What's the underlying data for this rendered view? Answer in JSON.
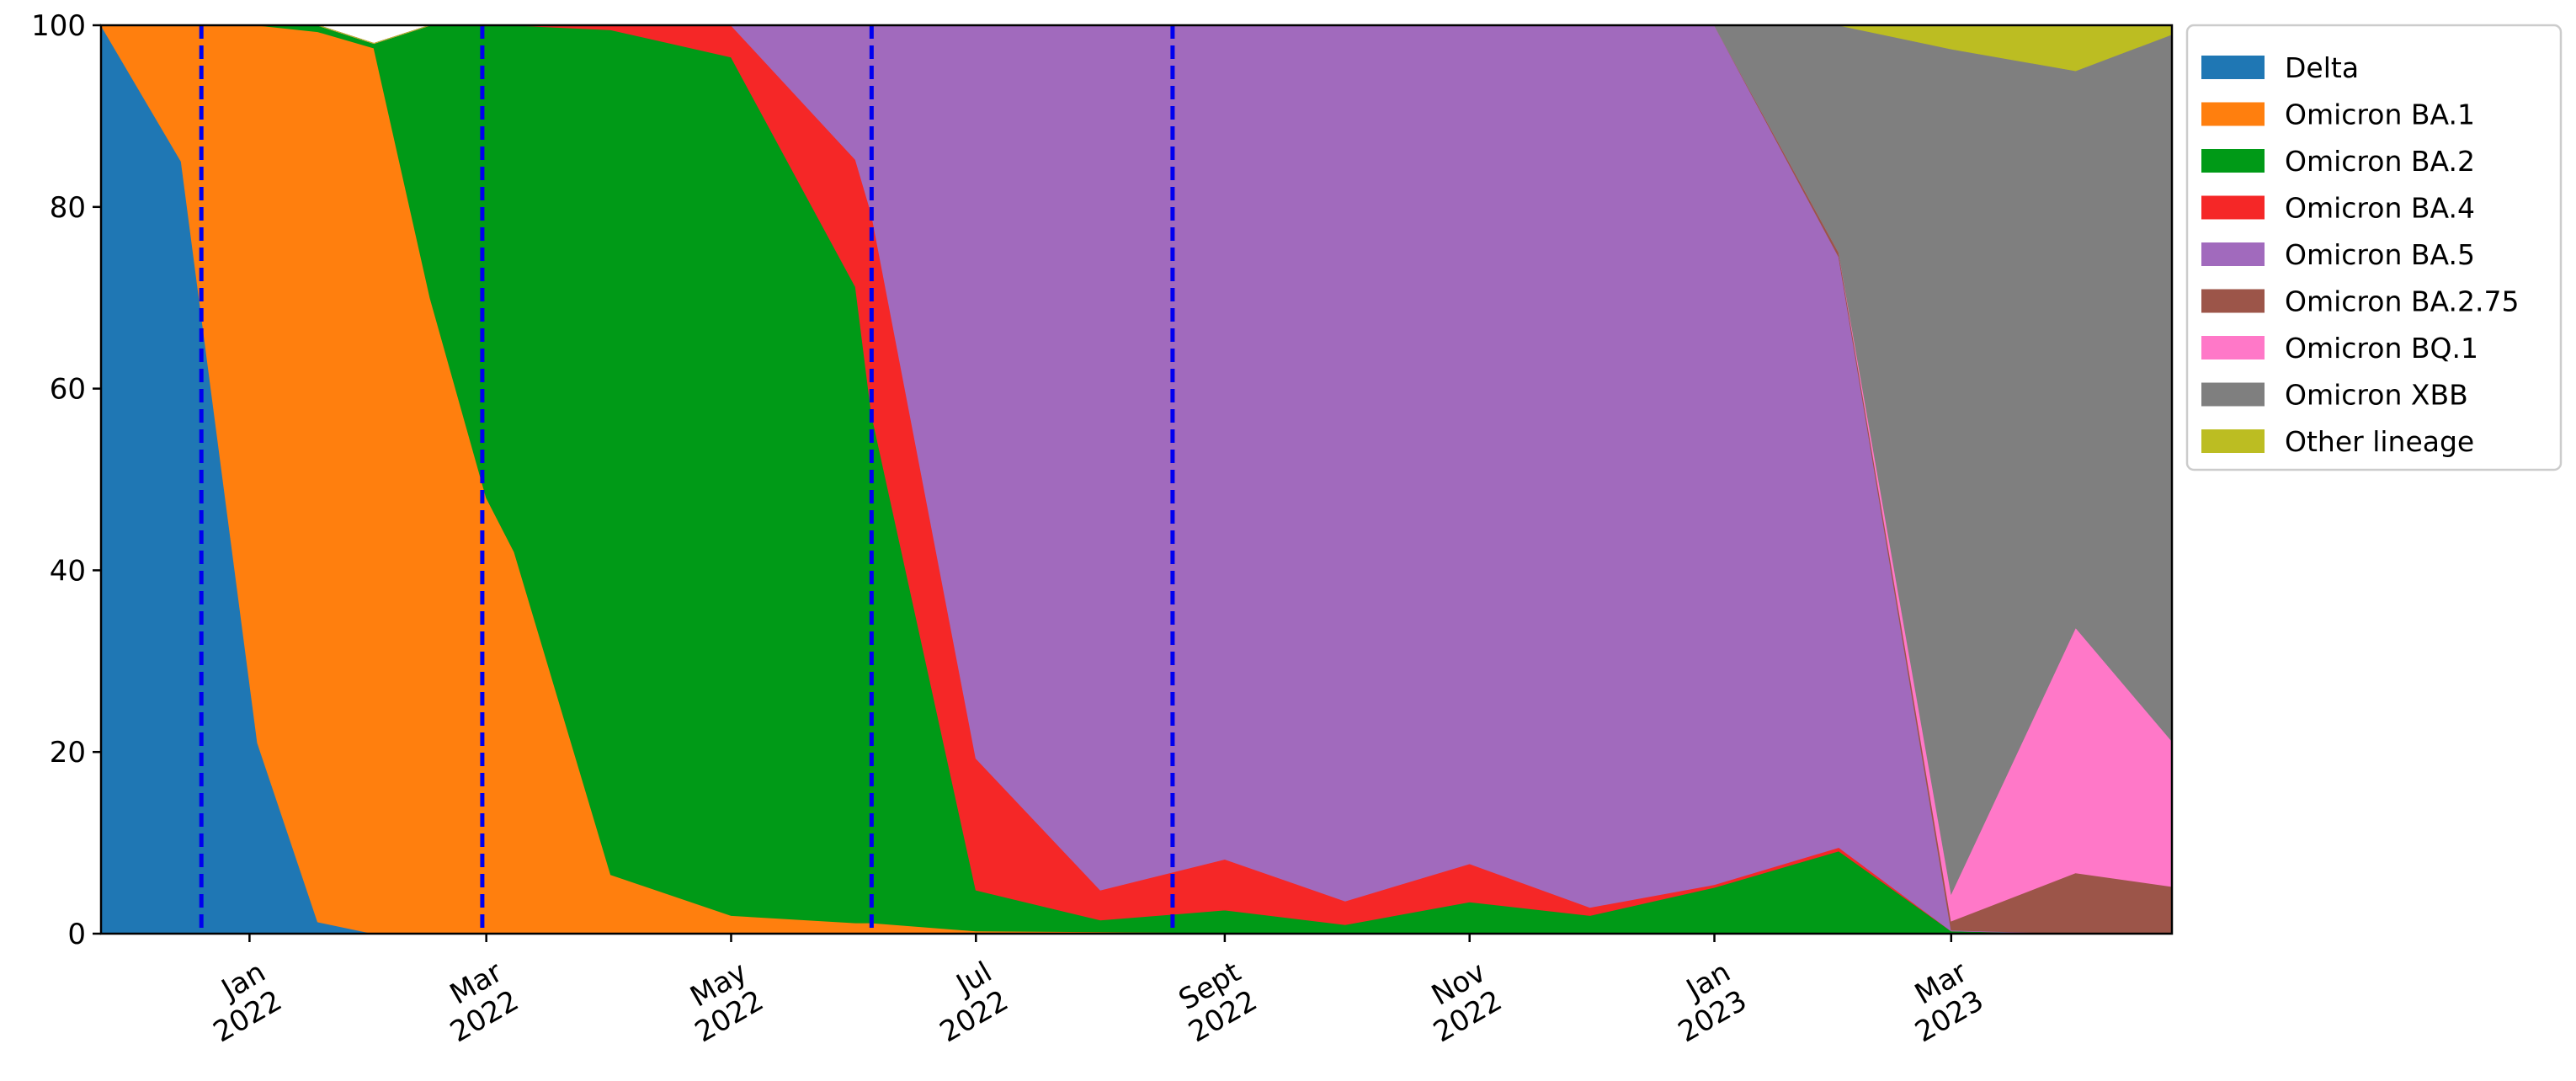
{
  "chart_data": {
    "type": "area",
    "stacked": true,
    "title": "",
    "xlabel": "",
    "ylabel": "",
    "ylim": [
      0,
      100
    ],
    "xlim": [
      "2021-11-25",
      "2023-04-25"
    ],
    "yticks": [
      0,
      20,
      40,
      60,
      80,
      100
    ],
    "xticks": [
      {
        "date": "2022-01-01",
        "month": "Jan",
        "year": "2022"
      },
      {
        "date": "2022-03-01",
        "month": "Mar",
        "year": "2022"
      },
      {
        "date": "2022-05-01",
        "month": "May",
        "year": "2022"
      },
      {
        "date": "2022-07-01",
        "month": "Jul",
        "year": "2022"
      },
      {
        "date": "2022-09-01",
        "month": "Sept",
        "year": "2022"
      },
      {
        "date": "2022-11-01",
        "month": "Nov",
        "year": "2022"
      },
      {
        "date": "2023-01-01",
        "month": "Jan",
        "year": "2023"
      },
      {
        "date": "2023-03-01",
        "month": "Mar",
        "year": "2023"
      }
    ],
    "x": [
      "2021-11-25",
      "2021-12-15",
      "2022-01-03",
      "2022-01-18",
      "2022-02-01",
      "2022-02-15",
      "2022-03-01",
      "2022-03-08",
      "2022-04-01",
      "2022-05-01",
      "2022-06-01",
      "2022-06-05",
      "2022-07-01",
      "2022-08-01",
      "2022-09-01",
      "2022-10-01",
      "2022-11-01",
      "2022-12-01",
      "2023-01-01",
      "2023-02-01",
      "2023-03-01",
      "2023-04-01",
      "2023-04-25"
    ],
    "series": [
      {
        "name": "Delta",
        "color": "#1f77b4",
        "values": [
          100,
          85,
          21,
          1.3,
          0,
          0,
          0,
          0,
          0,
          0,
          0,
          0,
          0,
          0,
          0,
          0,
          0,
          0,
          0,
          0,
          0,
          0,
          0
        ]
      },
      {
        "name": "Omicron BA.1",
        "color": "#ff7f0e",
        "values": [
          0,
          15,
          79,
          98,
          97.5,
          70,
          48,
          42,
          6.5,
          2,
          1.2,
          1.2,
          0.3,
          0.2,
          0.1,
          0.1,
          0.1,
          0.1,
          0.1,
          0.1,
          0.1,
          0,
          0
        ]
      },
      {
        "name": "Omicron BA.2",
        "color": "#009a17",
        "values": [
          0,
          0,
          0,
          0.7,
          0.5,
          30,
          52,
          58,
          93,
          94.5,
          70,
          56,
          4.5,
          1.3,
          2.5,
          0.9,
          3.4,
          1.9,
          5,
          9,
          0.2,
          0,
          0
        ]
      },
      {
        "name": "Omicron BA.4",
        "color": "#f52727",
        "values": [
          0,
          0,
          0,
          0,
          0,
          0,
          0,
          0,
          0.5,
          3.5,
          14,
          22,
          14.5,
          3.3,
          5.6,
          2.6,
          4.2,
          0.9,
          0.3,
          0.4,
          0,
          0,
          0
        ]
      },
      {
        "name": "Omicron BA.5",
        "color": "#a16abd",
        "values": [
          0,
          0,
          0,
          0,
          0,
          0,
          0,
          0,
          0,
          0,
          14.8,
          20.8,
          80.7,
          95.2,
          91.8,
          96.4,
          92.3,
          97.1,
          94.6,
          65,
          0.1,
          0,
          0
        ]
      },
      {
        "name": "Omicron BA.2.75",
        "color": "#9c5549",
        "values": [
          0,
          0,
          0,
          0,
          0,
          0,
          0,
          0,
          0,
          0,
          0,
          0,
          0,
          0,
          0,
          0,
          0,
          0,
          0,
          0.5,
          1,
          6.7,
          5.2
        ]
      },
      {
        "name": "Omicron BQ.1",
        "color": "#ff78c8",
        "values": [
          0,
          0,
          0,
          0,
          0,
          0,
          0,
          0,
          0,
          0,
          0,
          0,
          0,
          0,
          0,
          0,
          0,
          0,
          0,
          0,
          3,
          27,
          16
        ]
      },
      {
        "name": "Omicron XBB",
        "color": "#7f7f7f",
        "values": [
          0,
          0,
          0,
          0,
          0,
          0,
          0,
          0,
          0,
          0,
          0,
          0,
          0,
          0,
          0,
          0,
          0,
          0,
          0,
          25,
          93,
          61.3,
          77.8
        ]
      },
      {
        "name": "Other lineage",
        "color": "#bcbd22",
        "values": [
          0,
          0,
          0,
          0,
          0,
          0,
          0,
          0,
          0,
          0,
          0,
          0,
          0,
          0,
          0,
          0,
          0,
          0,
          0,
          0,
          2.6,
          5,
          1
        ]
      }
    ],
    "vlines": {
      "color": "#0000ee",
      "style": "dashed",
      "dates": [
        "2021-12-20",
        "2022-02-28",
        "2022-06-05",
        "2022-08-19"
      ]
    },
    "legend": {
      "position": "outside-right-top"
    },
    "grid": false
  }
}
